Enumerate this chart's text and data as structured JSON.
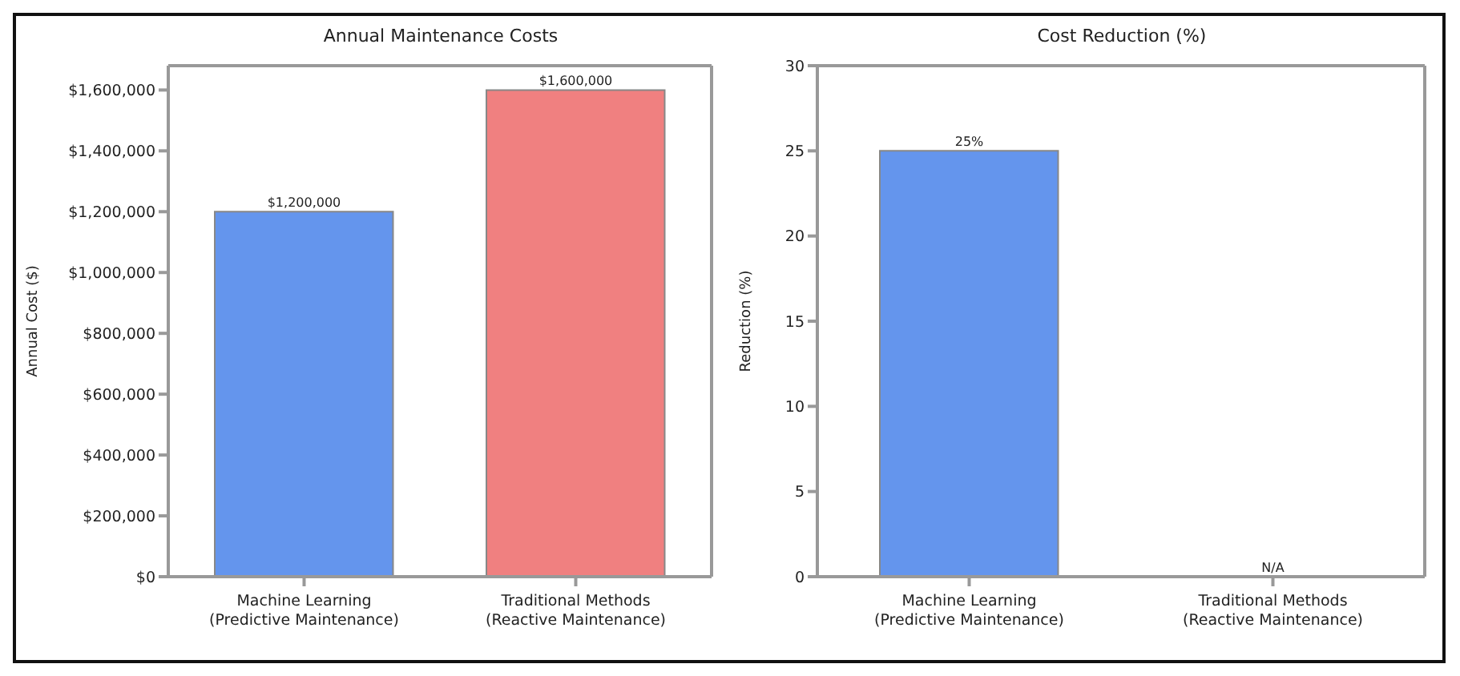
{
  "chart_data": [
    {
      "type": "bar",
      "title": "Annual Maintenance Costs",
      "ylabel": "Annual Cost ($)",
      "categories": [
        "Machine Learning\n(Predictive Maintenance)",
        "Traditional Methods\n(Reactive Maintenance)"
      ],
      "values": [
        1200000,
        1600000
      ],
      "colors": [
        "#6495ed",
        "#f08080"
      ],
      "ylim": [
        0,
        1680000
      ],
      "yticks": [
        {
          "value": 0,
          "label": "$0"
        },
        {
          "value": 200000,
          "label": "$200,000"
        },
        {
          "value": 400000,
          "label": "$400,000"
        },
        {
          "value": 600000,
          "label": "$600,000"
        },
        {
          "value": 800000,
          "label": "$800,000"
        },
        {
          "value": 1000000,
          "label": "$1,000,000"
        },
        {
          "value": 1200000,
          "label": "$1,200,000"
        },
        {
          "value": 1400000,
          "label": "$1,400,000"
        },
        {
          "value": 1600000,
          "label": "$1,600,000"
        }
      ],
      "value_labels": [
        "$1,200,000",
        "$1,600,000"
      ],
      "grid": false,
      "legend": false
    },
    {
      "type": "bar",
      "title": "Cost Reduction (%)",
      "ylabel": "Reduction (%)",
      "categories": [
        "Machine Learning\n(Predictive Maintenance)",
        "Traditional Methods\n(Reactive Maintenance)"
      ],
      "values": [
        25,
        0
      ],
      "colors": [
        "#6495ed",
        "#f08080"
      ],
      "ylim": [
        0,
        30
      ],
      "yticks": [
        0,
        5,
        10,
        15,
        20,
        25,
        30
      ],
      "value_labels": [
        "25%",
        "N/A"
      ],
      "grid": false,
      "legend": false
    }
  ]
}
